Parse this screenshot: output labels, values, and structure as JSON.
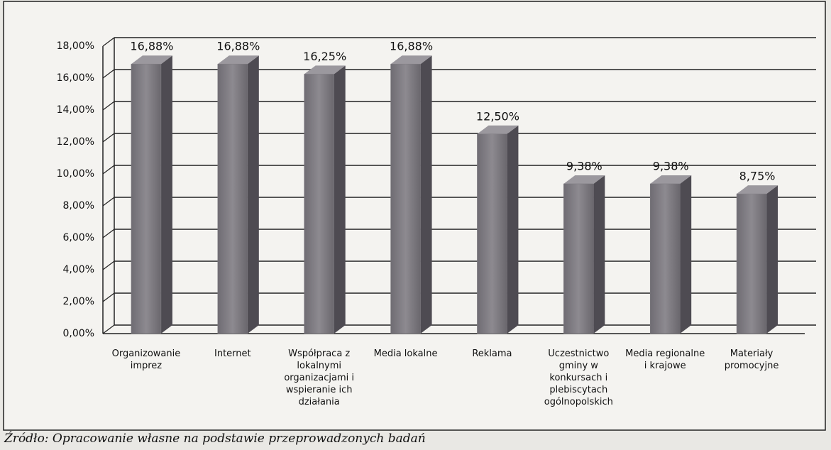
{
  "chart_data": {
    "type": "bar",
    "categories": [
      "Organizowanie imprez",
      "Internet",
      "Współpraca z lokalnymi organizacjami i wspieranie ich działania",
      "Media lokalne",
      "Reklama",
      "Uczestnictwo gminy w konkursach i plebiscytach ogólnopolskich",
      "Media regionalne i krajowe",
      "Materiały promocyjne"
    ],
    "values": [
      16.88,
      16.88,
      16.25,
      16.88,
      12.5,
      9.38,
      9.38,
      8.75
    ],
    "value_labels": [
      "16,88%",
      "16,88%",
      "16,25%",
      "16,88%",
      "12,50%",
      "9,38%",
      "9,38%",
      "8,75%"
    ],
    "color": "#7d7a80",
    "ylim": [
      0,
      18
    ],
    "yticks": [
      {
        "value": 0,
        "label": "0,00%"
      },
      {
        "value": 2,
        "label": "2,00%"
      },
      {
        "value": 4,
        "label": "4,00%"
      },
      {
        "value": 6,
        "label": "6,00%"
      },
      {
        "value": 8,
        "label": "8,00%"
      },
      {
        "value": 10,
        "label": "10,00%"
      },
      {
        "value": 12,
        "label": "12,00%"
      },
      {
        "value": 14,
        "label": "14,00%"
      },
      {
        "value": 16,
        "label": "16,00%"
      },
      {
        "value": 18,
        "label": "18,00%"
      }
    ],
    "grid": true,
    "source": "Źródło: Opracowanie własne na podstawie przeprowadzonych badań"
  }
}
